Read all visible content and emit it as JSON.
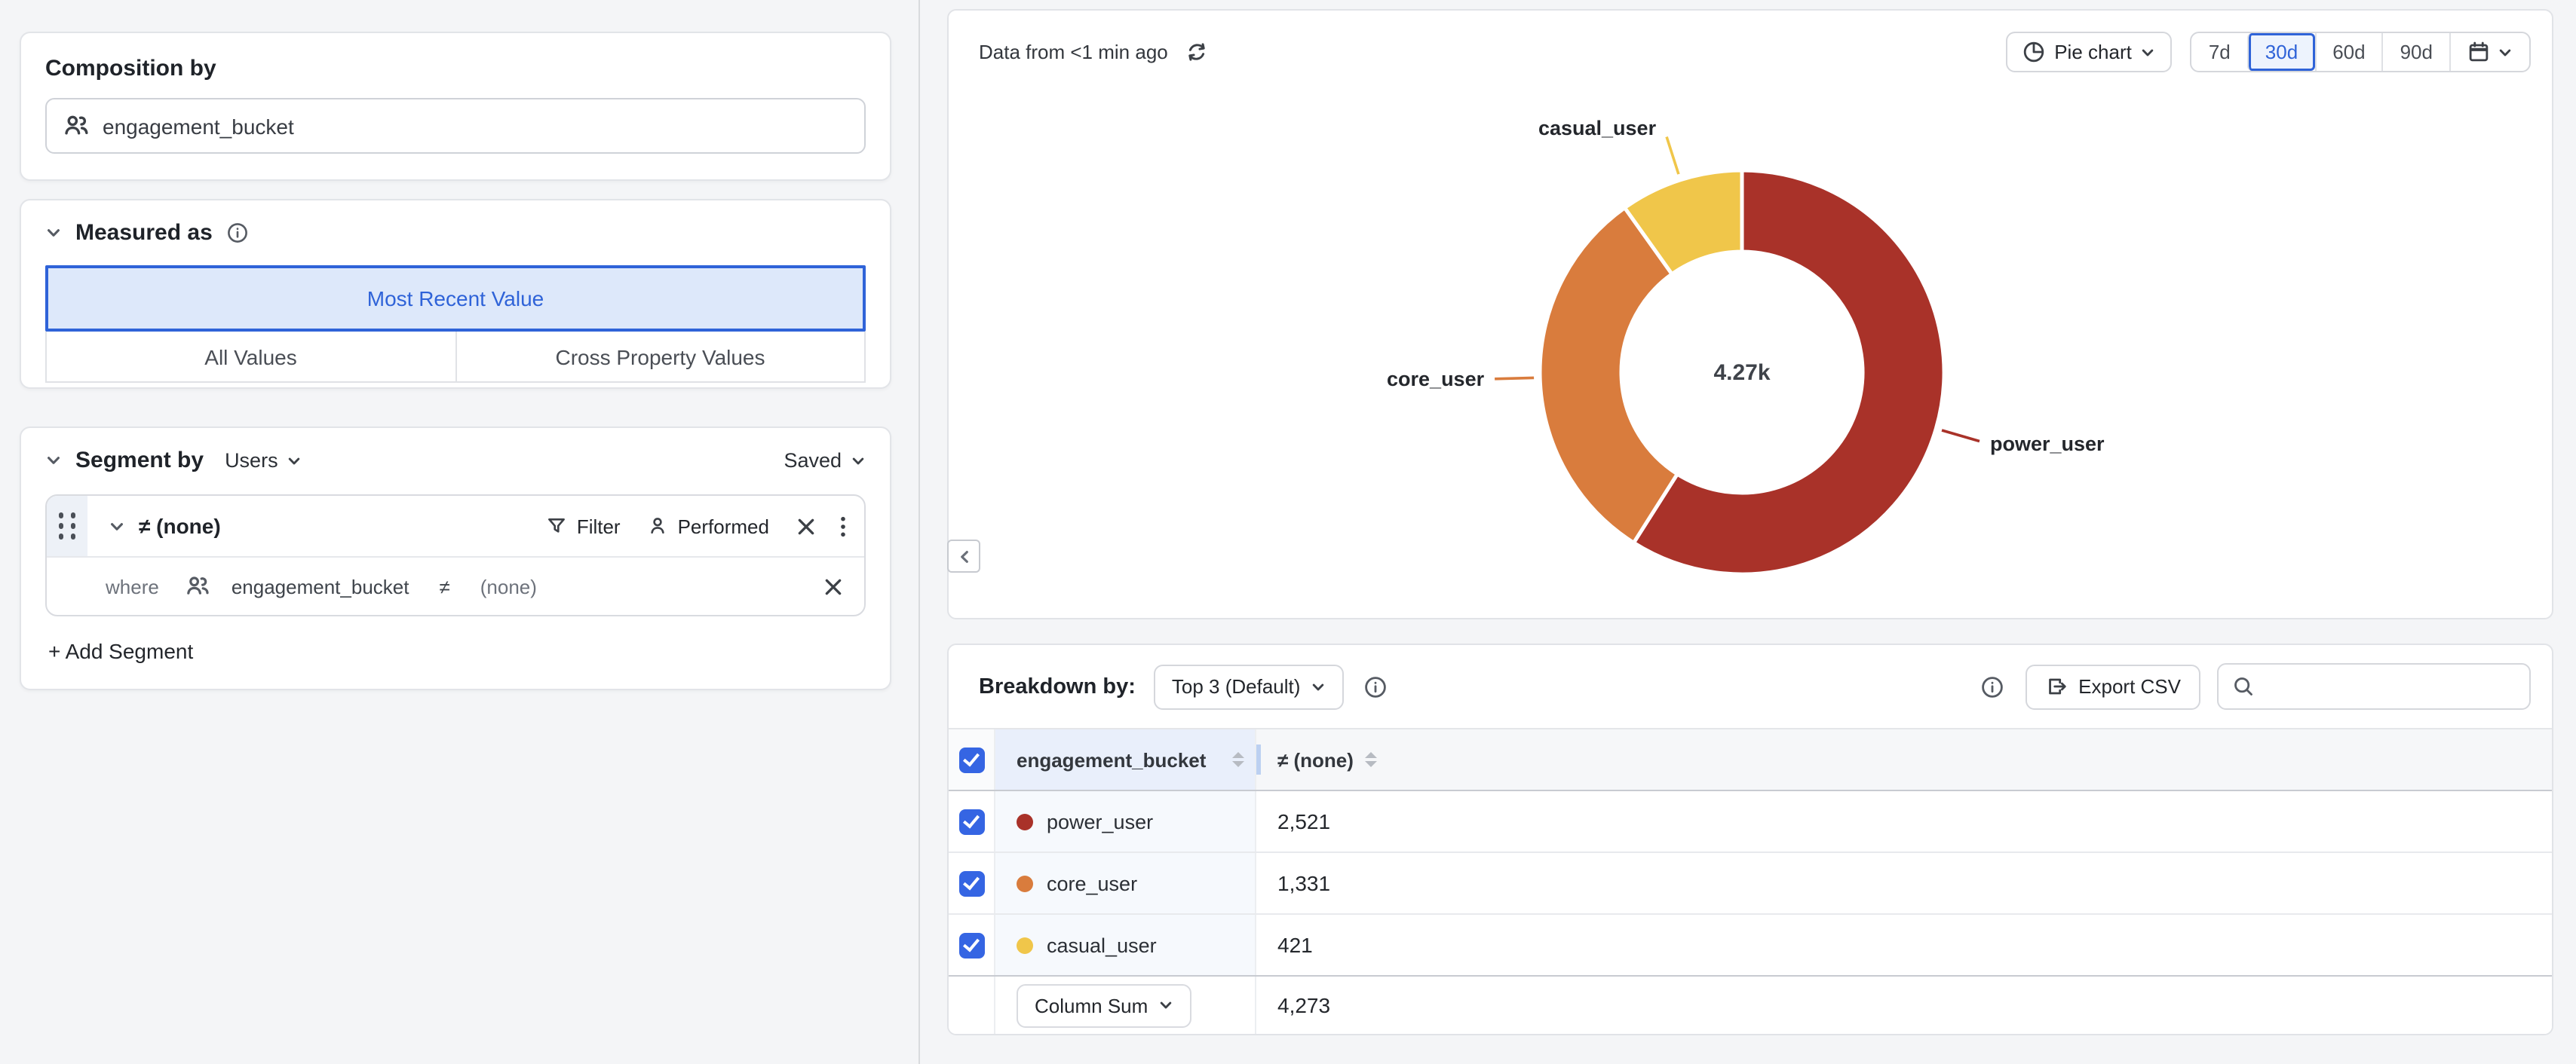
{
  "accent_color": "#2f63d8",
  "left_panel": {
    "composition": {
      "title": "Composition by",
      "property": "engagement_bucket",
      "property_icon": "users-icon"
    },
    "measured_as": {
      "title": "Measured as",
      "options": [
        {
          "label": "Most Recent Value",
          "selected": true
        },
        {
          "label": "All Values",
          "selected": false
        },
        {
          "label": "Cross Property Values",
          "selected": false
        }
      ]
    },
    "segment_by": {
      "title": "Segment by",
      "entity": "Users",
      "saved_label": "Saved",
      "segment": {
        "name": "≠ (none)",
        "filter_label": "Filter",
        "performed_label": "Performed",
        "where_keyword": "where",
        "property": "engagement_bucket",
        "operator": "≠",
        "value": "(none)"
      },
      "add_segment_label": "+ Add Segment"
    }
  },
  "chart_panel": {
    "status": "Data from <1 min ago",
    "chart_type_label": "Pie chart",
    "ranges": [
      {
        "label": "7d",
        "selected": false
      },
      {
        "label": "30d",
        "selected": true
      },
      {
        "label": "60d",
        "selected": false
      },
      {
        "label": "90d",
        "selected": false
      }
    ]
  },
  "chart_data": {
    "type": "pie",
    "donut": true,
    "categories": [
      "power_user",
      "core_user",
      "casual_user"
    ],
    "values": [
      2521,
      1331,
      421
    ],
    "colors": [
      "#a93229",
      "#d97c3d",
      "#f0c64a"
    ],
    "total": 4273,
    "center_label": "4.27k",
    "legend_position": "outside-leader-labels"
  },
  "breakdown": {
    "label": "Breakdown by:",
    "range_selector": "Top 3 (Default)",
    "export_label": "Export CSV",
    "search": {
      "placeholder": ""
    },
    "columns": [
      "engagement_bucket",
      "≠ (none)"
    ],
    "rows": [
      {
        "label": "power_user",
        "value": 2521,
        "value_display": "2,521"
      },
      {
        "label": "core_user",
        "value": 1331,
        "value_display": "1,331"
      },
      {
        "label": "casual_user",
        "value": 421,
        "value_display": "421"
      }
    ],
    "footer": {
      "aggregation_label": "Column Sum",
      "value": 4273,
      "value_display": "4,273"
    }
  }
}
